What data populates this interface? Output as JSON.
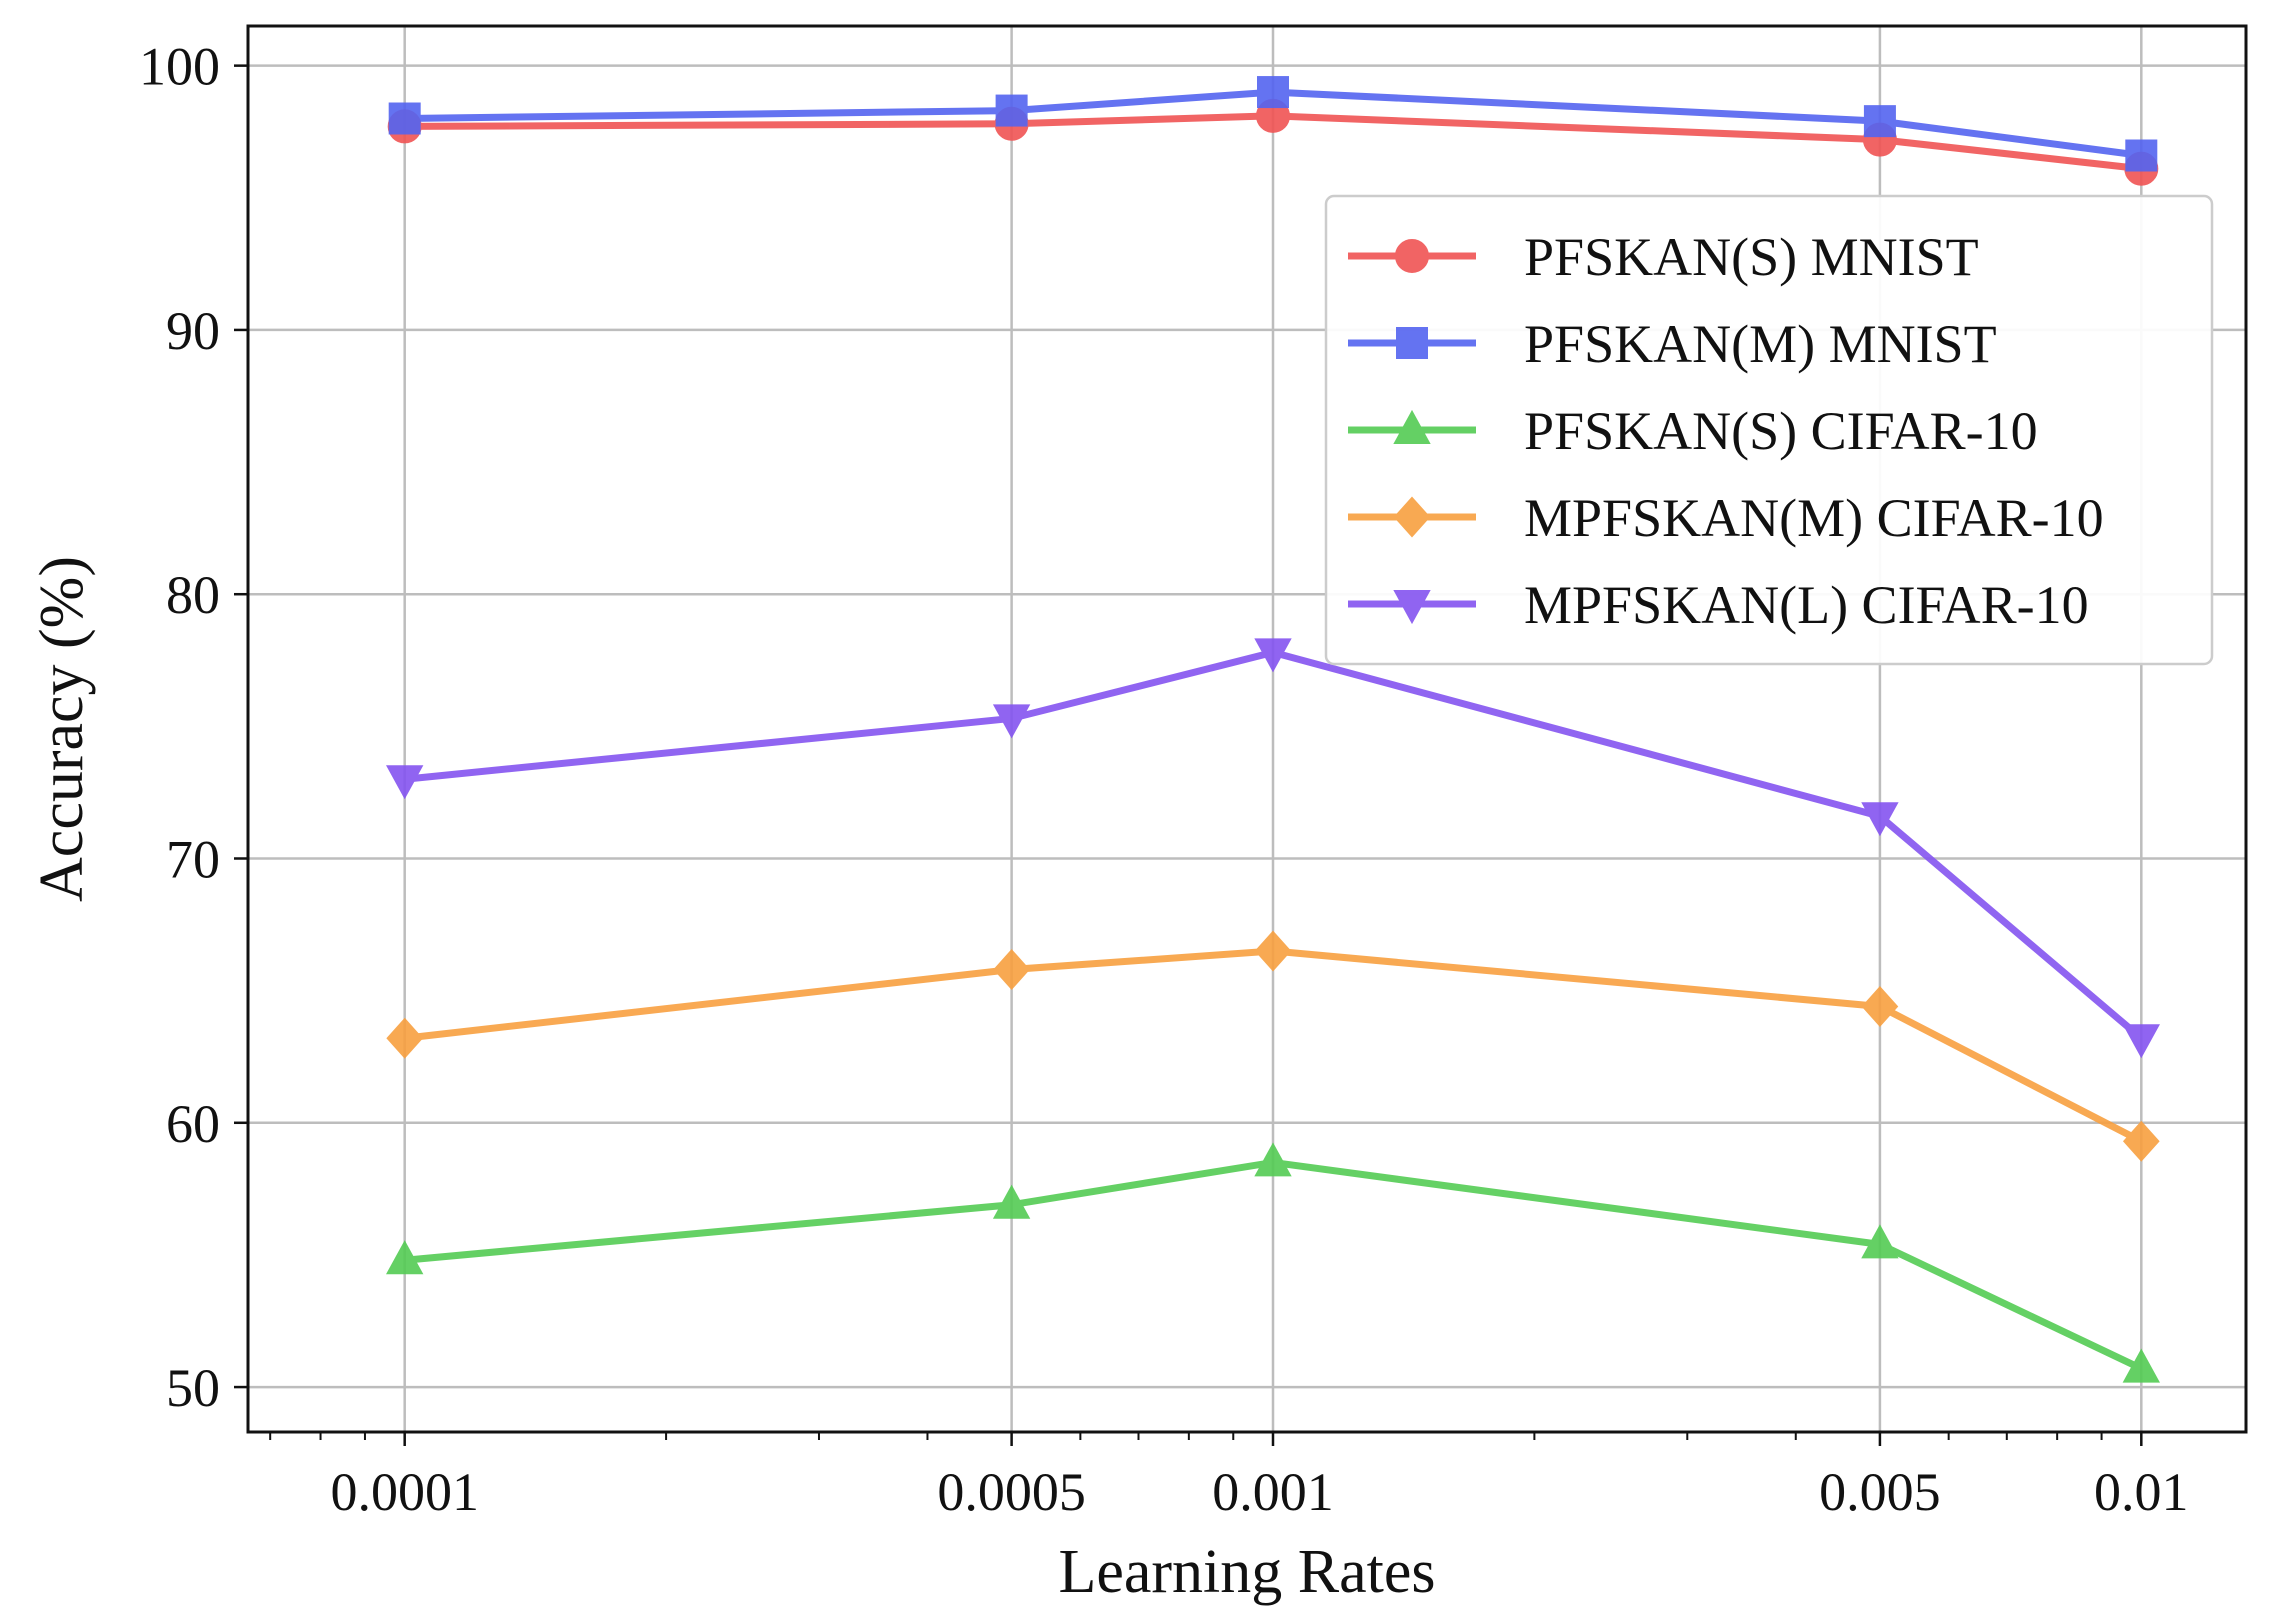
{
  "chart_data": {
    "type": "line",
    "xscale": "log",
    "x": [
      0.0001,
      0.0005,
      0.001,
      0.005,
      0.01
    ],
    "xtick_labels": [
      "0.0001",
      "0.0005",
      "0.001",
      "0.005",
      "0.01"
    ],
    "xlim": [
      6.6e-05,
      0.0132
    ],
    "ylim": [
      48.3,
      101.5
    ],
    "yticks": [
      50,
      60,
      70,
      80,
      90,
      100
    ],
    "ytick_labels": [
      "50",
      "60",
      "70",
      "80",
      "90",
      "100"
    ],
    "xlabel": "Learning Rates",
    "ylabel": "Accuracy (%)",
    "title": "",
    "grid": true,
    "legend_position": "upper-right",
    "series": [
      {
        "name": "PFSKAN(S) MNIST",
        "values": [
          97.7,
          97.8,
          98.1,
          97.2,
          96.1
        ],
        "color": "#f05454",
        "marker": "circle"
      },
      {
        "name": "PFSKAN(M) MNIST",
        "values": [
          98.0,
          98.3,
          99.0,
          97.9,
          96.6
        ],
        "color": "#5464f0",
        "marker": "square"
      },
      {
        "name": "PFSKAN(S) CIFAR-10",
        "values": [
          54.8,
          56.9,
          58.5,
          55.4,
          50.7
        ],
        "color": "#54cc54",
        "marker": "triangle-up"
      },
      {
        "name": "MPFSKAN(M) CIFAR-10",
        "values": [
          63.2,
          65.8,
          66.5,
          64.4,
          59.3
        ],
        "color": "#f8a040",
        "marker": "diamond"
      },
      {
        "name": "MPFSKAN(L) CIFAR-10",
        "values": [
          73.0,
          75.3,
          77.8,
          71.6,
          63.2
        ],
        "color": "#8454f0",
        "marker": "triangle-down"
      }
    ]
  }
}
